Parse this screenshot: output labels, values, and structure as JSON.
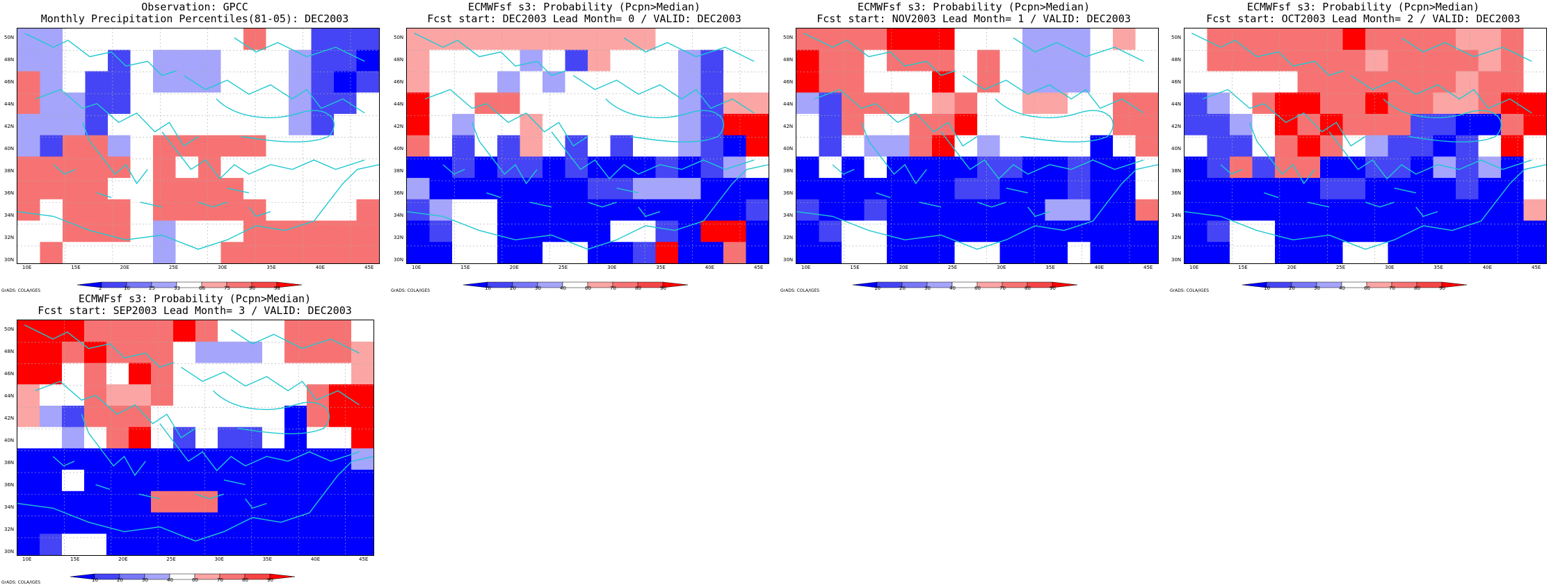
{
  "credit": "GrADS: COLA/IGES",
  "lat_labels": [
    "50N",
    "48N",
    "46N",
    "44N",
    "42N",
    "40N",
    "38N",
    "36N",
    "34N",
    "32N",
    "30N"
  ],
  "lon_labels": [
    "10E",
    "15E",
    "20E",
    "25E",
    "30E",
    "35E",
    "40E",
    "45E"
  ],
  "colors": {
    "dark_blue": "#0000ff",
    "mid_blue": "#4545f5",
    "blue": "#7777f7",
    "light_blue": "#a5a5fc",
    "white": "#ffffff",
    "light_red": "#fca5a5",
    "red": "#f77373",
    "mid_red": "#f54545",
    "dark_red": "#ff0000",
    "coast": "#20c8d0",
    "grid": "#aaaaaa"
  },
  "panels": [
    {
      "title1": "Observation: GPCC",
      "title2": "Monthly Precipitation Percentiles(81-05): DEC2003",
      "legend": [
        "2",
        "10",
        "25",
        "33",
        "66",
        "75",
        "90",
        "98"
      ],
      "grid": [
        "LLWWWWWWWWRWWBBB",
        "LLWWBWLLLWWWLBBA",
        "RLWBBWLLLWWWLBAB",
        "RLLBBWWWWWWWLBBW",
        "LLLBWWWWWWWWLBWW",
        "LBRRLWRRRRRWWWWW",
        "RRRRRWRWRWWWWWWW",
        "RRRRWWRRRRWWWWWW",
        "RWRRRWRRRRRWWWWR",
        "WWRRRWLWWWRRRRRR",
        "WRWWWWLWWRRRRRRR"
      ]
    },
    {
      "title1": "ECMWFsf s3: Probability (Pcpn>Median)",
      "title2": "Fcst start: DEC2003  Lead Month= 0 / VALID: DEC2003",
      "legend": [
        "10",
        "20",
        "30",
        "40",
        "60",
        "70",
        "80",
        "90"
      ],
      "grid": [
        "PPPPPPPPPPPWWWWW",
        "PWWWWLWBPWWWLBWW",
        "PWWWLWLWWWWWLBWW",
        "DWWRRWWWWWWWLBPP",
        "DWLWWPWWWWWWLBDD",
        "RWBWBPWBWBWWLBAD",
        "AABABBABAAABABLW",
        "LAAAAAAABBLLLAAA",
        "BLWWAAAAAAAAAAAB",
        "ABWWAAAAAWWBADDA",
        "AAWWAAWWAABDAARA"
      ]
    },
    {
      "title1": "ECMWFsf s3: Probability (Pcpn>Median)",
      "title2": "Fcst start: NOV2003  Lead Month= 1 / VALID: DEC2003",
      "legend": [
        "10",
        "20",
        "30",
        "40",
        "60",
        "70",
        "80",
        "90"
      ],
      "grid": [
        "RRRRDDDWWWLLLWPW",
        "DRRWRRRWRWLLLWWW",
        "DRRWWWDWRWLLLWWW",
        "LBRRRWPRWWPPWWRR",
        "WBRWWRRDWWWWWWRR",
        "WBWLLRDWLWWWWAWR",
        "AWAWAAAABBAABAAW",
        "AAAAAAABBAAABAAW",
        "BAABAAAAAAALLAAR",
        "ABWWAAAAAAAAAAAA",
        "AAWWAAAWWAAAWAAA"
      ]
    },
    {
      "title1": "ECMWFsf s3: Probability (Pcpn>Median)",
      "title2": "Fcst start: OCT2003  Lead Month= 2 / VALID: DEC2003",
      "legend": [
        "10",
        "20",
        "30",
        "40",
        "60",
        "70",
        "80",
        "90"
      ],
      "grid": [
        "WRRRRRRDRRRRPPRW",
        "WRRRRRRRPRRRRPRW",
        "WWWWWRRRRRRRPRRW",
        "BLWRDDRRDRRPPRDD",
        "BBLWDRDRRRBBAARD",
        "WBBWRDRWLBBABWDW",
        "ABRBRRAABBALBLAW",
        "AAAAAABBAAAABAAW",
        "AAAAAAAAAAAAAAAP",
        "ABWWAAAAAAAAAAAA",
        "AAWWAAAWWAAAAAAA"
      ]
    },
    {
      "title1": "ECMWFsf s3: Probability (Pcpn>Median)",
      "title2": "Fcst start: SEP2003  Lead Month= 3 / VALID: DEC2003",
      "legend": [
        "10",
        "20",
        "30",
        "40",
        "60",
        "70",
        "80",
        "90"
      ],
      "grid": [
        "DDDRRRRDRWWWRRRW",
        "DDRDRRRWLLLWRRRP",
        "DDWRWDRWWWWWWWWP",
        "PWWRPPRWWWWWWRDD",
        "PLBRRRWWWWWWARDD",
        "WWLWRDWBWBBWAWWD",
        "AAAAAAAAAAAAAAAL",
        "AAWAAAAAAAAAAAAA",
        "AAAAAARRRAAAAAAA",
        "AAAAAAAAAAAAAAAA",
        "ABWWAAAAAAAAAAAA"
      ]
    }
  ]
}
